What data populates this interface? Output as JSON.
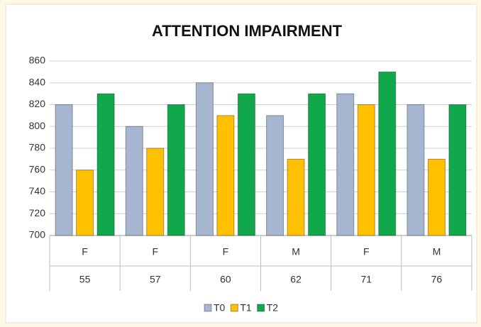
{
  "chart_data": {
    "type": "bar",
    "title": "ATTENTION IMPAIRMENT",
    "categories": [
      "F",
      "F",
      "F",
      "M",
      "F",
      "M"
    ],
    "subcategories": [
      "55",
      "57",
      "60",
      "62",
      "71",
      "76"
    ],
    "series": [
      {
        "name": "T0",
        "color": "#a6b5d0",
        "values": [
          820,
          800,
          840,
          810,
          830,
          820
        ]
      },
      {
        "name": "T1",
        "color": "#ffc000",
        "values": [
          760,
          780,
          810,
          770,
          820,
          770
        ]
      },
      {
        "name": "T2",
        "color": "#10a84a",
        "values": [
          830,
          820,
          830,
          830,
          850,
          820
        ]
      }
    ],
    "ylim": [
      700,
      860
    ],
    "yticks": [
      700,
      720,
      740,
      760,
      780,
      800,
      820,
      840,
      860
    ],
    "grid": true,
    "legend": "bottom"
  }
}
